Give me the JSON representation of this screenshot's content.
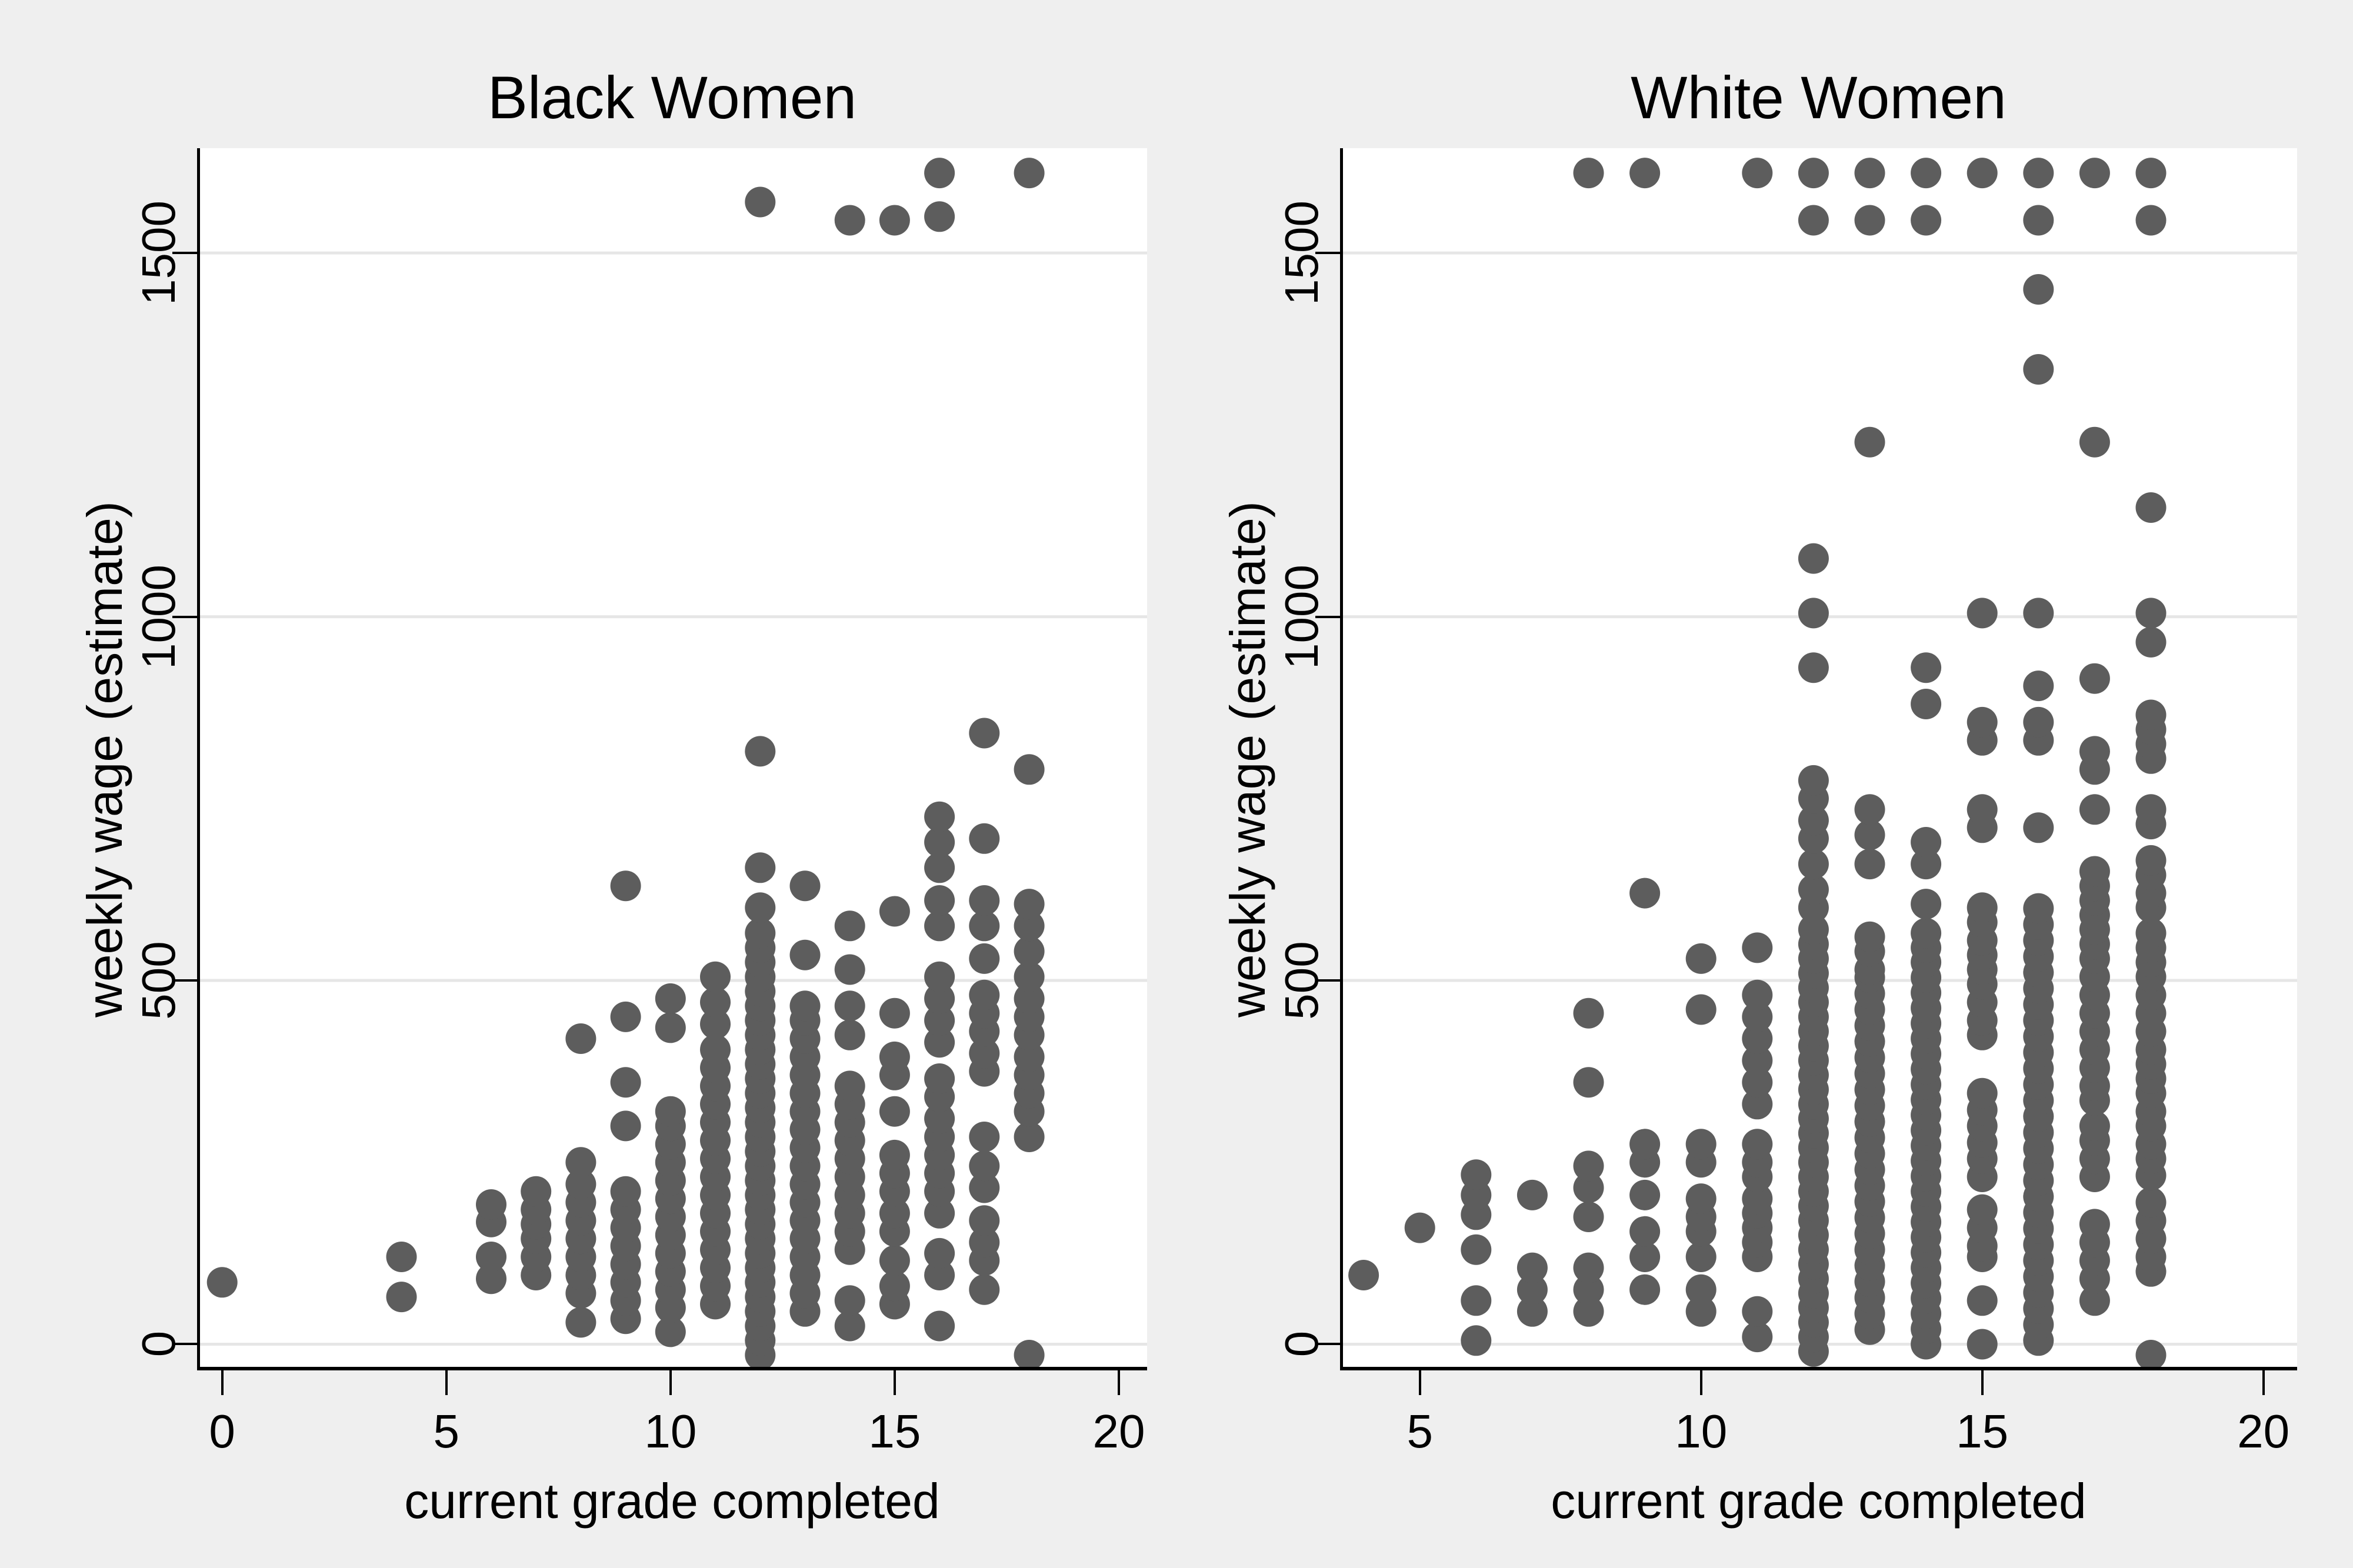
{
  "figure": {
    "background": "#efefef",
    "plot_background": "#ffffff",
    "grid_color": "#e6e6e6",
    "axis_color": "#000000",
    "marker_color": "#5d5d5d",
    "text_color": "#000000"
  },
  "chart_data": [
    {
      "type": "scatter",
      "title": "Black Women",
      "xlabel": "current grade completed",
      "ylabel": "weekly wage (estimate)",
      "xlim": [
        -0.56,
        20.63
      ],
      "ylim": [
        -36,
        1644
      ],
      "xticks": [
        0,
        5,
        10,
        15,
        20
      ],
      "yticks": [
        0,
        500,
        1000,
        1500
      ],
      "grid": "horizontal-y-only",
      "legend": "none",
      "marker": {
        "shape": "circle",
        "radius_px": 26,
        "color": "#5d5d5d"
      },
      "points_by_grade": {
        "0": [
          85
        ],
        "4": [
          65,
          120
        ],
        "6": [
          90,
          120,
          168,
          192
        ],
        "7": [
          95,
          120,
          145,
          165,
          185,
          210
        ],
        "8": [
          30,
          70,
          95,
          120,
          145,
          170,
          195,
          220,
          250,
          420
        ],
        "9": [
          35,
          60,
          85,
          110,
          135,
          160,
          185,
          210,
          300,
          360,
          450,
          630
        ],
        "10": [
          17,
          50,
          75,
          100,
          125,
          150,
          175,
          200,
          225,
          250,
          275,
          300,
          320,
          435,
          475
        ],
        "11": [
          55,
          80,
          105,
          130,
          155,
          180,
          205,
          230,
          255,
          280,
          305,
          330,
          355,
          380,
          405,
          440,
          470,
          505
        ],
        "12": [
          -15,
          5,
          25,
          45,
          65,
          85,
          105,
          125,
          145,
          165,
          185,
          205,
          225,
          245,
          265,
          285,
          305,
          325,
          345,
          365,
          385,
          405,
          425,
          445,
          465,
          485,
          505,
          525,
          545,
          565,
          600,
          655,
          815,
          1570
        ],
        "13": [
          45,
          70,
          95,
          120,
          145,
          170,
          195,
          220,
          245,
          270,
          295,
          320,
          345,
          370,
          395,
          420,
          445,
          465,
          535,
          630
        ],
        "14": [
          25,
          60,
          130,
          155,
          180,
          205,
          230,
          255,
          280,
          305,
          330,
          355,
          425,
          465,
          515,
          575,
          1545
        ],
        "15": [
          55,
          80,
          115,
          155,
          180,
          210,
          235,
          260,
          320,
          370,
          395,
          455,
          595,
          1545
        ],
        "16": [
          25,
          95,
          125,
          180,
          210,
          235,
          260,
          285,
          310,
          340,
          365,
          415,
          445,
          475,
          505,
          575,
          610,
          655,
          690,
          725,
          1550,
          1610
        ],
        "17": [
          75,
          115,
          140,
          170,
          215,
          245,
          285,
          375,
          400,
          430,
          455,
          480,
          530,
          575,
          610,
          695,
          840
        ],
        "18": [
          -15,
          285,
          320,
          345,
          370,
          395,
          425,
          450,
          475,
          505,
          540,
          575,
          605,
          790,
          1610
        ]
      }
    },
    {
      "type": "scatter",
      "title": "White Women",
      "xlabel": "current grade completed",
      "ylabel": "weekly wage (estimate)",
      "xlim": [
        3.58,
        20.6
      ],
      "ylim": [
        -36,
        1644
      ],
      "xticks": [
        5,
        10,
        15,
        20
      ],
      "yticks": [
        0,
        500,
        1000,
        1500
      ],
      "grid": "horizontal-y-only",
      "legend": "none",
      "marker": {
        "shape": "circle",
        "radius_px": 26,
        "color": "#5d5d5d"
      },
      "points_by_grade": {
        "4": [
          95
        ],
        "5": [
          160
        ],
        "6": [
          5,
          60,
          130,
          178,
          205,
          233
        ],
        "7": [
          45,
          75,
          105,
          205
        ],
        "8": [
          45,
          75,
          105,
          175,
          215,
          245,
          360,
          455,
          1610
        ],
        "9": [
          75,
          120,
          155,
          205,
          250,
          275,
          620,
          1610
        ],
        "10": [
          45,
          75,
          120,
          155,
          175,
          200,
          250,
          275,
          460,
          530
        ],
        "11": [
          10,
          45,
          120,
          140,
          160,
          180,
          200,
          230,
          250,
          275,
          330,
          360,
          390,
          420,
          450,
          480,
          545,
          1610
        ],
        "12": [
          -10,
          10,
          30,
          50,
          70,
          90,
          110,
          130,
          150,
          170,
          190,
          210,
          230,
          250,
          270,
          290,
          310,
          330,
          350,
          370,
          390,
          410,
          430,
          450,
          470,
          490,
          510,
          530,
          550,
          570,
          600,
          625,
          660,
          695,
          720,
          750,
          775,
          930,
          1005,
          1080,
          1545,
          1610
        ],
        "13": [
          20,
          42,
          64,
          86,
          108,
          130,
          152,
          174,
          196,
          218,
          240,
          262,
          284,
          306,
          328,
          350,
          372,
          394,
          416,
          438,
          460,
          482,
          504,
          515,
          540,
          560,
          660,
          700,
          735,
          1240,
          1545,
          1610
        ],
        "14": [
          0,
          21,
          42,
          63,
          84,
          105,
          126,
          147,
          168,
          189,
          210,
          231,
          252,
          273,
          294,
          315,
          336,
          357,
          378,
          399,
          420,
          441,
          462,
          483,
          504,
          525,
          545,
          565,
          605,
          660,
          690,
          880,
          930,
          1545,
          1610
        ],
        "15": [
          0,
          60,
          120,
          135,
          160,
          185,
          230,
          255,
          277,
          300,
          322,
          345,
          425,
          445,
          470,
          495,
          515,
          535,
          555,
          580,
          600,
          710,
          735,
          830,
          855,
          1005,
          1610
        ],
        "16": [
          5,
          27,
          49,
          71,
          93,
          115,
          137,
          159,
          181,
          203,
          225,
          247,
          269,
          291,
          313,
          335,
          357,
          379,
          401,
          423,
          445,
          467,
          489,
          511,
          533,
          555,
          577,
          599,
          710,
          830,
          855,
          905,
          1005,
          1340,
          1450,
          1545,
          1610
        ],
        "17": [
          60,
          90,
          115,
          140,
          165,
          230,
          255,
          280,
          300,
          335,
          355,
          380,
          405,
          430,
          455,
          480,
          505,
          530,
          550,
          570,
          590,
          610,
          630,
          650,
          735,
          790,
          815,
          915,
          1240,
          1610
        ],
        "18": [
          -15,
          100,
          120,
          145,
          170,
          195,
          232,
          255,
          275,
          300,
          320,
          345,
          365,
          385,
          405,
          430,
          455,
          480,
          505,
          525,
          545,
          565,
          600,
          620,
          645,
          665,
          715,
          735,
          805,
          825,
          845,
          865,
          965,
          1005,
          1150,
          1545,
          1610
        ]
      }
    }
  ]
}
